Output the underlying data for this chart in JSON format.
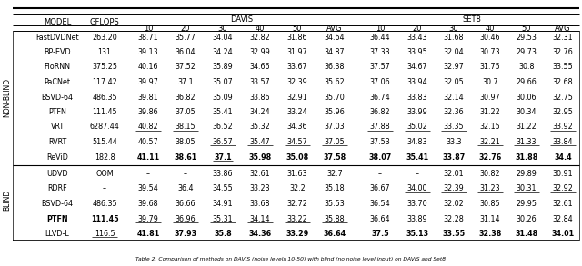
{
  "title": "Table 2: Comparison of methods on DAVIS (noise levels 10-50) with blind (no noise level input) on DAVIS and Set8",
  "rows": [
    {
      "group": "NON-BLIND",
      "model": "FastDVDNet",
      "gflops": "263.20",
      "davis": [
        "38.71",
        "35.77",
        "34.04",
        "32.82",
        "31.86",
        "34.64"
      ],
      "set8": [
        "36.44",
        "33.43",
        "31.68",
        "30.46",
        "29.53",
        "32.31"
      ],
      "bold_davis": [],
      "bold_set8": [],
      "bold_model": false,
      "bold_gflops": false,
      "underline_davis": [],
      "underline_set8": [],
      "underline_gflops": false
    },
    {
      "group": "NON-BLIND",
      "model": "BP-EVD",
      "gflops": "131",
      "davis": [
        "39.13",
        "36.04",
        "34.24",
        "32.99",
        "31.97",
        "34.87"
      ],
      "set8": [
        "37.33",
        "33.95",
        "32.04",
        "30.73",
        "29.73",
        "32.76"
      ],
      "bold_davis": [],
      "bold_set8": [],
      "bold_model": false,
      "bold_gflops": false,
      "underline_davis": [],
      "underline_set8": [],
      "underline_gflops": false
    },
    {
      "group": "NON-BLIND",
      "model": "FloRNN",
      "gflops": "375.25",
      "davis": [
        "40.16",
        "37.52",
        "35.89",
        "34.66",
        "33.67",
        "36.38"
      ],
      "set8": [
        "37.57",
        "34.67",
        "32.97",
        "31.75",
        "30.8",
        "33.55"
      ],
      "bold_davis": [],
      "bold_set8": [],
      "bold_model": false,
      "bold_gflops": false,
      "underline_davis": [],
      "underline_set8": [],
      "underline_gflops": false
    },
    {
      "group": "NON-BLIND",
      "model": "PaCNet",
      "gflops": "117.42",
      "davis": [
        "39.97",
        "37.1",
        "35.07",
        "33.57",
        "32.39",
        "35.62"
      ],
      "set8": [
        "37.06",
        "33.94",
        "32.05",
        "30.7",
        "29.66",
        "32.68"
      ],
      "bold_davis": [],
      "bold_set8": [],
      "bold_model": false,
      "bold_gflops": false,
      "underline_davis": [],
      "underline_set8": [],
      "underline_gflops": false
    },
    {
      "group": "NON-BLIND",
      "model": "BSVD-64",
      "gflops": "486.35",
      "davis": [
        "39.81",
        "36.82",
        "35.09",
        "33.86",
        "32.91",
        "35.70"
      ],
      "set8": [
        "36.74",
        "33.83",
        "32.14",
        "30.97",
        "30.06",
        "32.75"
      ],
      "bold_davis": [],
      "bold_set8": [],
      "bold_model": false,
      "bold_gflops": false,
      "underline_davis": [],
      "underline_set8": [],
      "underline_gflops": false
    },
    {
      "group": "NON-BLIND",
      "model": "PTFN",
      "gflops": "111.45",
      "davis": [
        "39.86",
        "37.05",
        "35.41",
        "34.24",
        "33.24",
        "35.96"
      ],
      "set8": [
        "36.82",
        "33.99",
        "32.36",
        "31.22",
        "30.34",
        "32.95"
      ],
      "bold_davis": [],
      "bold_set8": [],
      "bold_model": false,
      "bold_gflops": false,
      "underline_davis": [],
      "underline_set8": [],
      "underline_gflops": false
    },
    {
      "group": "NON-BLIND",
      "model": "VRT",
      "gflops": "6287.44",
      "davis": [
        "40.82",
        "38.15",
        "36.52",
        "35.32",
        "34.36",
        "37.03"
      ],
      "set8": [
        "37.88",
        "35.02",
        "33.35",
        "32.15",
        "31.22",
        "33.92"
      ],
      "bold_davis": [],
      "bold_set8": [],
      "bold_model": false,
      "bold_gflops": false,
      "underline_davis": [
        0,
        1
      ],
      "underline_set8": [
        0,
        1,
        2,
        5
      ],
      "underline_gflops": false
    },
    {
      "group": "NON-BLIND",
      "model": "RVRT",
      "gflops": "515.44",
      "davis": [
        "40.57",
        "38.05",
        "36.57",
        "35.47",
        "34.57",
        "37.05"
      ],
      "set8": [
        "37.53",
        "34.83",
        "33.3",
        "32.21",
        "31.33",
        "33.84"
      ],
      "bold_davis": [],
      "bold_set8": [],
      "bold_model": false,
      "bold_gflops": false,
      "underline_davis": [
        2,
        3,
        4,
        5
      ],
      "underline_set8": [
        3,
        4,
        5
      ],
      "underline_gflops": false
    },
    {
      "group": "NON-BLIND",
      "model": "ReViD",
      "gflops": "182.8",
      "davis": [
        "41.11",
        "38.61",
        "37.1",
        "35.98",
        "35.08",
        "37.58"
      ],
      "set8": [
        "38.07",
        "35.41",
        "33.87",
        "32.76",
        "31.88",
        "34.4"
      ],
      "bold_davis": [
        0,
        1,
        2,
        3,
        4,
        5
      ],
      "bold_set8": [
        0,
        1,
        2,
        3,
        4,
        5
      ],
      "bold_model": false,
      "bold_gflops": false,
      "underline_davis": [
        2
      ],
      "underline_set8": [],
      "underline_gflops": false
    },
    {
      "group": "BLIND",
      "model": "UDVD",
      "gflops": "OOM",
      "davis": [
        "–",
        "–",
        "33.86",
        "32.61",
        "31.63",
        "32.7"
      ],
      "set8": [
        "–",
        "–",
        "32.01",
        "30.82",
        "29.89",
        "30.91"
      ],
      "bold_davis": [],
      "bold_set8": [],
      "bold_model": false,
      "bold_gflops": false,
      "underline_davis": [],
      "underline_set8": [],
      "underline_gflops": false
    },
    {
      "group": "BLIND",
      "model": "RDRF",
      "gflops": "–",
      "davis": [
        "39.54",
        "36.4",
        "34.55",
        "33.23",
        "32.2",
        "35.18"
      ],
      "set8": [
        "36.67",
        "34.00",
        "32.39",
        "31.23",
        "30.31",
        "32.92"
      ],
      "bold_davis": [],
      "bold_set8": [],
      "bold_model": false,
      "bold_gflops": false,
      "underline_davis": [],
      "underline_set8": [
        1,
        2,
        3,
        4,
        5
      ],
      "underline_gflops": false
    },
    {
      "group": "BLIND",
      "model": "BSVD-64",
      "gflops": "486.35",
      "davis": [
        "39.68",
        "36.66",
        "34.91",
        "33.68",
        "32.72",
        "35.53"
      ],
      "set8": [
        "36.54",
        "33.70",
        "32.02",
        "30.85",
        "29.95",
        "32.61"
      ],
      "bold_davis": [],
      "bold_set8": [],
      "bold_model": false,
      "bold_gflops": false,
      "underline_davis": [],
      "underline_set8": [],
      "underline_gflops": false
    },
    {
      "group": "BLIND",
      "model": "PTFN",
      "gflops": "111.45",
      "davis": [
        "39.79",
        "36.96",
        "35.31",
        "34.14",
        "33.22",
        "35.88"
      ],
      "set8": [
        "36.64",
        "33.89",
        "32.28",
        "31.14",
        "30.26",
        "32.84"
      ],
      "bold_davis": [],
      "bold_set8": [],
      "bold_model": true,
      "bold_gflops": true,
      "underline_davis": [
        0,
        1,
        2,
        3,
        4,
        5
      ],
      "underline_set8": [],
      "underline_gflops": false
    },
    {
      "group": "BLIND",
      "model": "LLVD-L",
      "gflops": "116.5",
      "davis": [
        "41.81",
        "37.93",
        "35.8",
        "34.36",
        "33.29",
        "36.64"
      ],
      "set8": [
        "37.5",
        "35.13",
        "33.55",
        "32.38",
        "31.48",
        "34.01"
      ],
      "bold_davis": [
        0,
        1,
        2,
        3,
        4,
        5
      ],
      "bold_set8": [
        0,
        1,
        2,
        3,
        4,
        5
      ],
      "bold_model": false,
      "bold_gflops": false,
      "underline_davis": [],
      "underline_set8": [],
      "underline_gflops": true
    }
  ]
}
